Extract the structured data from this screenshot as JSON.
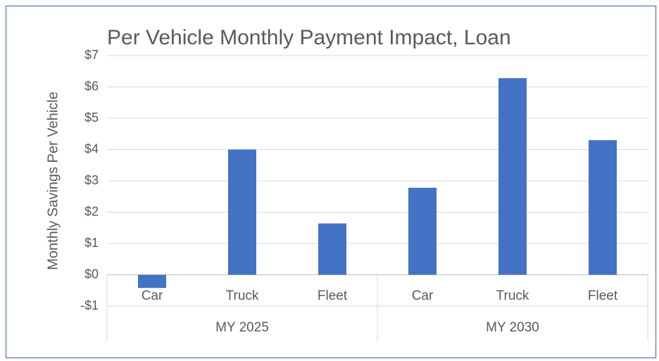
{
  "chart_data": {
    "type": "bar",
    "title": "Per Vehicle Monthly Payment Impact, Loan",
    "y_label": "Monthly Savings  Per Vehicle",
    "categories": [
      "Car",
      "Truck",
      "Fleet",
      "Car",
      "Truck",
      "Fleet"
    ],
    "groups": [
      "MY 2025",
      "MY 2030"
    ],
    "values": [
      -0.42,
      4.0,
      1.64,
      2.78,
      6.28,
      4.3
    ],
    "color": "#4472c4",
    "ylim": [
      -1,
      7
    ],
    "yticks": [
      {
        "value": -1,
        "label": "-$1"
      },
      {
        "value": 0,
        "label": "$0"
      },
      {
        "value": 1,
        "label": "$1"
      },
      {
        "value": 2,
        "label": "$2"
      },
      {
        "value": 3,
        "label": "$3"
      },
      {
        "value": 4,
        "label": "$4"
      },
      {
        "value": 5,
        "label": "$5"
      },
      {
        "value": 6,
        "label": "$6"
      },
      {
        "value": 7,
        "label": "$7"
      }
    ],
    "grid": true
  }
}
